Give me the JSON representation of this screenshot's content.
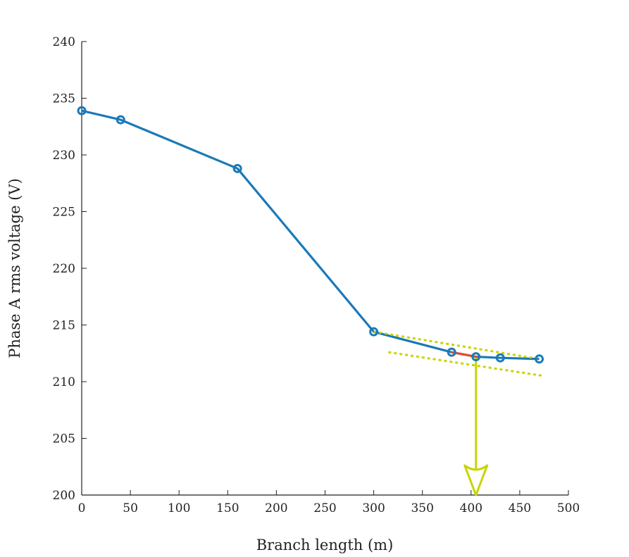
{
  "chart_data": {
    "type": "line",
    "xlabel": "Branch length (m)",
    "ylabel": "Phase A rms voltage (V)",
    "xlim": [
      0,
      500
    ],
    "ylim": [
      200,
      240
    ],
    "xticks": [
      0,
      50,
      100,
      150,
      200,
      250,
      300,
      350,
      400,
      450,
      500
    ],
    "yticks": [
      200,
      205,
      210,
      215,
      220,
      225,
      230,
      235,
      240
    ],
    "grid": false,
    "series": [
      {
        "color": "#1a7ab8",
        "x": [
          0,
          40,
          160,
          300,
          380,
          405,
          430,
          470
        ],
        "y": [
          233.9,
          233.1,
          228.8,
          214.4,
          212.6,
          212.2,
          212.1,
          212.0
        ]
      }
    ],
    "annotations": {
      "highlight_segment": {
        "color": "#e0502a",
        "x": [
          380,
          405
        ],
        "y": [
          212.6,
          212.2
        ]
      },
      "tangent_lines": [
        {
          "color": "#c8d400",
          "x": [
            300,
            470
          ],
          "y": [
            214.4,
            212.0
          ]
        },
        {
          "color": "#c8d400",
          "x": [
            315,
            475
          ],
          "y": [
            212.6,
            210.5
          ]
        }
      ],
      "arrow": {
        "color": "#c8d400",
        "x": 405,
        "y_from": 212.2,
        "y_to": 200
      }
    }
  }
}
